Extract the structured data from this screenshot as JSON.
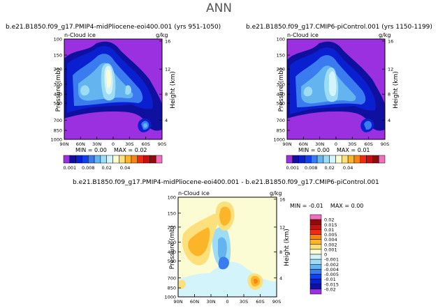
{
  "figure": {
    "title": "ANN",
    "variable": "n-Cloud ice",
    "units": "g/kg",
    "yaxis_left": "Pressure (mb)",
    "yaxis_right": "Height (km)"
  },
  "colors": {
    "abs_scale": [
      "#9B30E0",
      "#1010A0",
      "#0A20D0",
      "#1040F0",
      "#3A7CF0",
      "#64B4F0",
      "#9CDCF4",
      "#D4F4FC",
      "#FCFCD4",
      "#FCE07C",
      "#FCB428",
      "#F88414",
      "#F02C10",
      "#C81010",
      "#900C0C",
      "#F070C0"
    ],
    "diff_scale": [
      "#9B30E0",
      "#1010A0",
      "#0A20D0",
      "#1040F0",
      "#3A7CF0",
      "#64B4F0",
      "#9CDCF4",
      "#D4F4FC",
      "#FCFCD4",
      "#FCE07C",
      "#FCB428",
      "#F88414",
      "#F02C10",
      "#C81010",
      "#900C0C",
      "#F070C0"
    ]
  },
  "panels": [
    {
      "title": "b.e21.B1850.f09_g17.PMIP4-midPliocene-eoi400.001 (yrs 951-1050)",
      "min_label": "MIN =",
      "min": "0.00",
      "max_label": "MAX =",
      "max": "0.02"
    },
    {
      "title": "b.e21.B1850.f09_g17.CMIP6-piControl.001 (yrs 1150-1199)",
      "min_label": "MIN =",
      "min": "0.00",
      "max_label": "MAX =",
      "max": "0.01"
    },
    {
      "title": "b.e21.B1850.f09_g17.PMIP4-midPliocene-eoi400.001 - b.e21.B1850.f09_g17.CMIP6-piControl.001",
      "min_label": "MIN =",
      "min": "-0.01",
      "max_label": "MAX =",
      "max": "0.00"
    }
  ],
  "chart_data": {
    "type": "heatmap",
    "x_ticks": [
      "90N",
      "60N",
      "30N",
      "0",
      "30S",
      "60S",
      "90S"
    ],
    "y_ticks_pressure": [
      "100",
      "150",
      "200",
      "300",
      "400",
      "500",
      "700",
      "850",
      "1000"
    ],
    "y_ticks_height": [
      "16",
      "12",
      "8",
      "4"
    ],
    "abs_colorbar_labels": [
      "0.001",
      "0.008",
      "0.02",
      "0.04"
    ],
    "diff_colorbar_labels": [
      "0.02",
      "0.015",
      "0.01",
      "0.005",
      "0.004",
      "0.002",
      "0.001",
      "0",
      "-0.001",
      "-0.002",
      "-0.004",
      "-0.005",
      "-0.01",
      "-0.015",
      "-0.02"
    ]
  }
}
